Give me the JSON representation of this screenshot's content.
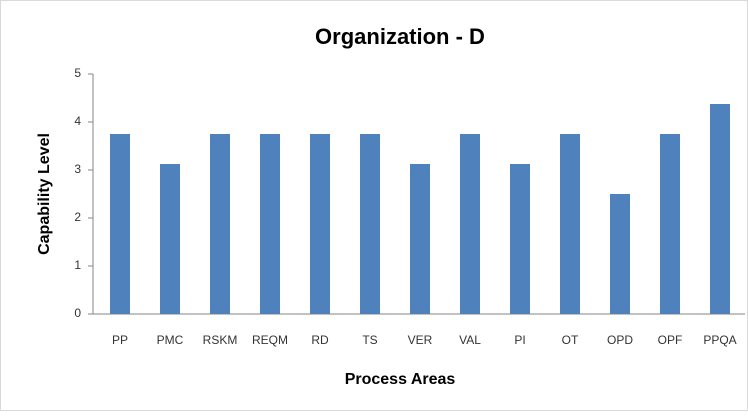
{
  "chart_data": {
    "type": "bar",
    "title": "Organization - D",
    "x_label": "Process Areas",
    "y_label": "Capability Level",
    "categories": [
      "PP",
      "PMC",
      "RSKM",
      "REQM",
      "RD",
      "TS",
      "VER",
      "VAL",
      "PI",
      "OT",
      "OPD",
      "OPF",
      "PPQA"
    ],
    "values": [
      3.75,
      3.125,
      3.75,
      3.75,
      3.75,
      3.75,
      3.125,
      3.75,
      3.125,
      3.75,
      2.5,
      3.75,
      4.375
    ],
    "color": "#4f81bd",
    "ylim": [
      0,
      5
    ],
    "yticks": [
      0,
      1,
      2,
      3,
      4,
      5
    ],
    "grid": false
  }
}
